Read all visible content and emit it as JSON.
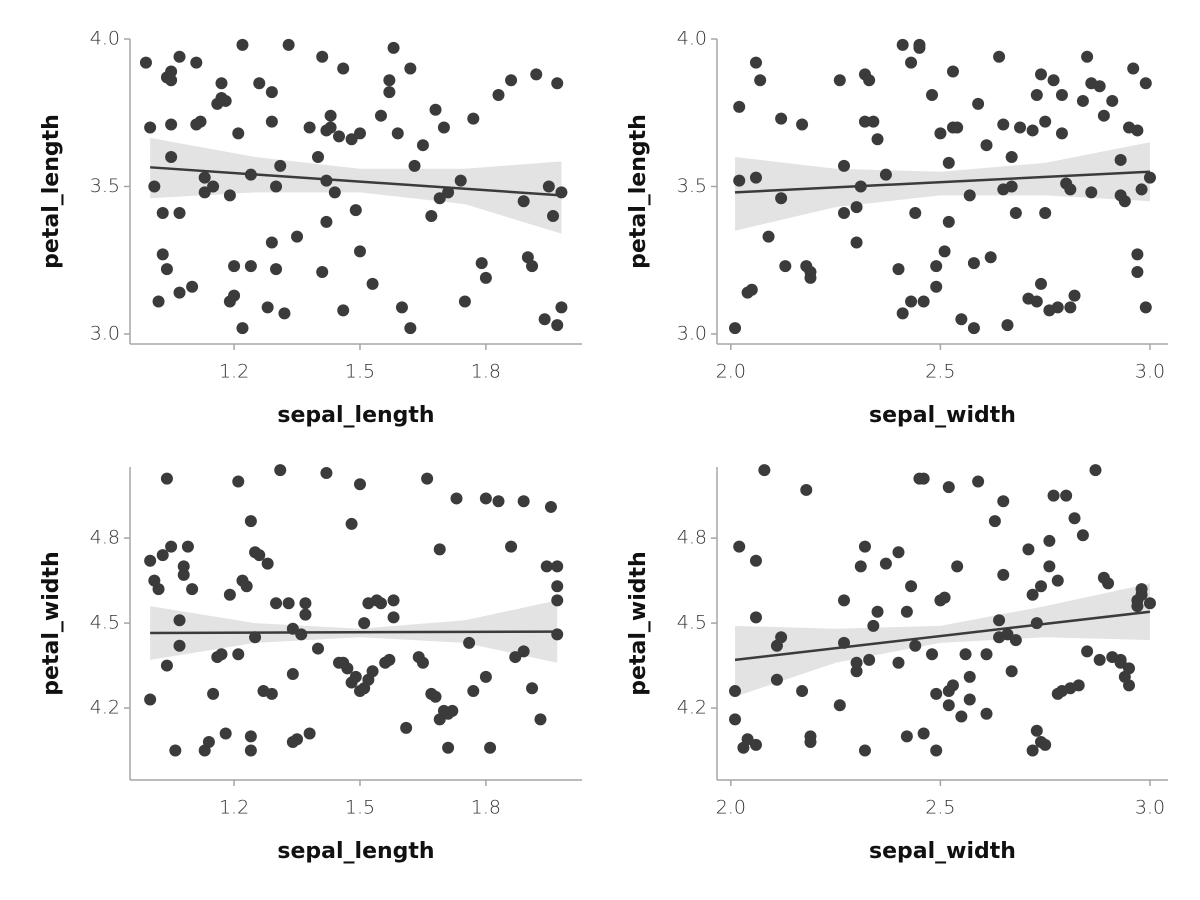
{
  "chart_data": [
    {
      "type": "scatter",
      "x_label": "sepal_length",
      "y_label": "petal_length",
      "color": "#3b3b3b",
      "band_color": "#e3e3e3",
      "xlim": [
        0.952,
        2.029
      ],
      "ylim": [
        2.966,
        4.0
      ],
      "xticks": [
        1.2,
        1.5,
        1.8
      ],
      "yticks": [
        {
          "value": 3.0,
          "label": "3.0"
        },
        3.5,
        {
          "value": 4.0,
          "label": "4.0"
        }
      ],
      "x": [
        0.99,
        1.0,
        1.01,
        1.02,
        1.03,
        1.03,
        1.04,
        1.04,
        1.05,
        1.05,
        1.05,
        1.05,
        1.07,
        1.07,
        1.07,
        1.1,
        1.11,
        1.11,
        1.12,
        1.13,
        1.13,
        1.15,
        1.16,
        1.17,
        1.17,
        1.18,
        1.19,
        1.19,
        1.2,
        1.2,
        1.21,
        1.22,
        1.22,
        1.24,
        1.24,
        1.26,
        1.28,
        1.29,
        1.29,
        1.29,
        1.3,
        1.3,
        1.31,
        1.32,
        1.33,
        1.35,
        1.38,
        1.4,
        1.41,
        1.41,
        1.42,
        1.42,
        1.42,
        1.43,
        1.43,
        1.44,
        1.45,
        1.46,
        1.46,
        1.48,
        1.49,
        1.5,
        1.5,
        1.53,
        1.55,
        1.57,
        1.57,
        1.58,
        1.59,
        1.6,
        1.62,
        1.62,
        1.63,
        1.65,
        1.67,
        1.68,
        1.69,
        1.7,
        1.71,
        1.74,
        1.75,
        1.77,
        1.79,
        1.8,
        1.83,
        1.86,
        1.89,
        1.9,
        1.91,
        1.92,
        1.94,
        1.95,
        1.96,
        1.97,
        1.97,
        1.98,
        1.98
      ],
      "values": [
        3.92,
        3.7,
        3.5,
        3.11,
        3.41,
        3.27,
        3.22,
        3.87,
        3.89,
        3.86,
        3.71,
        3.6,
        3.41,
        3.14,
        3.94,
        3.16,
        3.92,
        3.71,
        3.72,
        3.48,
        3.53,
        3.5,
        3.78,
        3.85,
        3.8,
        3.79,
        3.47,
        3.11,
        3.13,
        3.23,
        3.68,
        3.98,
        3.02,
        3.23,
        3.54,
        3.85,
        3.09,
        3.72,
        3.82,
        3.31,
        3.22,
        3.5,
        3.57,
        3.07,
        3.98,
        3.33,
        3.7,
        3.6,
        3.94,
        3.21,
        3.52,
        3.69,
        3.38,
        3.74,
        3.7,
        3.48,
        3.67,
        3.9,
        3.08,
        3.66,
        3.42,
        3.68,
        3.28,
        3.17,
        3.74,
        3.82,
        3.86,
        3.97,
        3.68,
        3.09,
        3.02,
        3.9,
        3.57,
        3.64,
        3.4,
        3.76,
        3.46,
        3.7,
        3.48,
        3.52,
        3.11,
        3.73,
        3.24,
        3.19,
        3.81,
        3.86,
        3.45,
        3.26,
        3.23,
        3.88,
        3.05,
        3.5,
        3.4,
        3.03,
        3.85,
        3.48,
        3.09
      ],
      "regression": {
        "x": [
          1.0,
          1.98
        ],
        "y": [
          3.565,
          3.47
        ]
      },
      "band": {
        "x": [
          1.0,
          1.25,
          1.5,
          1.75,
          1.98
        ],
        "lower": [
          3.46,
          3.48,
          3.48,
          3.44,
          3.34
        ],
        "upper": [
          3.665,
          3.6,
          3.56,
          3.56,
          3.585
        ]
      }
    },
    {
      "type": "scatter",
      "x_label": "sepal_width",
      "y_label": "petal_length",
      "color": "#3b3b3b",
      "band_color": "#e3e3e3",
      "xlim": [
        1.967,
        3.043
      ],
      "ylim": [
        2.966,
        4.0
      ],
      "xticks": [
        {
          "value": 2.0,
          "label": "2.0"
        },
        2.5,
        {
          "value": 3.0,
          "label": "3.0"
        }
      ],
      "yticks": [
        {
          "value": 3.0,
          "label": "3.0"
        },
        3.5,
        {
          "value": 4.0,
          "label": "4.0"
        }
      ],
      "x": [
        2.01,
        2.02,
        2.02,
        2.04,
        2.05,
        2.06,
        2.06,
        2.07,
        2.09,
        2.12,
        2.12,
        2.13,
        2.17,
        2.18,
        2.19,
        2.19,
        2.26,
        2.27,
        2.27,
        2.3,
        2.3,
        2.31,
        2.32,
        2.32,
        2.33,
        2.34,
        2.35,
        2.37,
        2.4,
        2.41,
        2.41,
        2.43,
        2.43,
        2.44,
        2.45,
        2.45,
        2.46,
        2.48,
        2.49,
        2.49,
        2.5,
        2.51,
        2.52,
        2.52,
        2.53,
        2.53,
        2.54,
        2.55,
        2.57,
        2.58,
        2.58,
        2.59,
        2.61,
        2.62,
        2.64,
        2.65,
        2.65,
        2.66,
        2.67,
        2.67,
        2.68,
        2.69,
        2.71,
        2.72,
        2.73,
        2.73,
        2.74,
        2.74,
        2.75,
        2.75,
        2.76,
        2.77,
        2.78,
        2.79,
        2.79,
        2.8,
        2.81,
        2.81,
        2.82,
        2.84,
        2.85,
        2.86,
        2.86,
        2.88,
        2.89,
        2.91,
        2.93,
        2.93,
        2.94,
        2.95,
        2.96,
        2.97,
        2.97,
        2.97,
        2.98,
        2.99,
        2.99,
        3.0
      ],
      "values": [
        3.02,
        3.52,
        3.77,
        3.14,
        3.15,
        3.53,
        3.92,
        3.86,
        3.33,
        3.73,
        3.46,
        3.23,
        3.71,
        3.23,
        3.21,
        3.19,
        3.86,
        3.41,
        3.57,
        3.43,
        3.31,
        3.5,
        3.88,
        3.72,
        3.86,
        3.72,
        3.66,
        3.54,
        3.22,
        3.07,
        3.98,
        3.92,
        3.11,
        3.41,
        3.98,
        3.97,
        3.11,
        3.81,
        3.16,
        3.23,
        3.68,
        3.28,
        3.38,
        3.58,
        3.7,
        3.89,
        3.7,
        3.05,
        3.47,
        3.02,
        3.24,
        3.78,
        3.64,
        3.26,
        3.94,
        3.71,
        3.49,
        3.03,
        3.6,
        3.5,
        3.41,
        3.7,
        3.12,
        3.69,
        3.11,
        3.81,
        3.17,
        3.88,
        3.41,
        3.72,
        3.08,
        3.86,
        3.09,
        3.81,
        3.68,
        3.51,
        3.09,
        3.49,
        3.13,
        3.79,
        3.94,
        3.85,
        3.48,
        3.84,
        3.74,
        3.79,
        3.47,
        3.59,
        3.45,
        3.7,
        3.9,
        3.69,
        3.27,
        3.21,
        3.49,
        3.09,
        3.85,
        3.53
      ],
      "regression": {
        "x": [
          2.01,
          3.0
        ],
        "y": [
          3.48,
          3.55
        ]
      },
      "band": {
        "x": [
          2.01,
          2.25,
          2.5,
          2.75,
          3.0
        ],
        "lower": [
          3.35,
          3.43,
          3.47,
          3.47,
          3.45
        ],
        "upper": [
          3.6,
          3.56,
          3.55,
          3.58,
          3.65
        ]
      }
    },
    {
      "type": "scatter",
      "x_label": "sepal_length",
      "y_label": "petal_width",
      "color": "#3b3b3b",
      "band_color": "#e3e3e3",
      "xlim": [
        0.952,
        2.029
      ],
      "ylim": [
        3.946,
        5.051
      ],
      "xticks": [
        1.2,
        1.5,
        1.8
      ],
      "yticks": [
        4.2,
        4.5,
        4.8
      ],
      "x": [
        1.0,
        1.0,
        1.01,
        1.02,
        1.03,
        1.04,
        1.04,
        1.05,
        1.06,
        1.07,
        1.07,
        1.08,
        1.08,
        1.09,
        1.1,
        1.13,
        1.14,
        1.15,
        1.16,
        1.17,
        1.18,
        1.19,
        1.21,
        1.21,
        1.22,
        1.23,
        1.24,
        1.24,
        1.24,
        1.25,
        1.25,
        1.26,
        1.27,
        1.28,
        1.29,
        1.3,
        1.31,
        1.33,
        1.34,
        1.34,
        1.34,
        1.35,
        1.36,
        1.37,
        1.37,
        1.38,
        1.4,
        1.42,
        1.45,
        1.46,
        1.47,
        1.48,
        1.48,
        1.49,
        1.5,
        1.5,
        1.51,
        1.51,
        1.52,
        1.52,
        1.53,
        1.54,
        1.55,
        1.56,
        1.57,
        1.58,
        1.58,
        1.61,
        1.64,
        1.65,
        1.66,
        1.67,
        1.68,
        1.69,
        1.7,
        1.71,
        1.71,
        1.72,
        1.69,
        1.73,
        1.76,
        1.77,
        1.8,
        1.8,
        1.81,
        1.83,
        1.86,
        1.87,
        1.89,
        1.89,
        1.91,
        1.93,
        1.945,
        1.955,
        1.97,
        1.97,
        1.97,
        1.97
      ],
      "values": [
        4.72,
        4.23,
        4.65,
        4.62,
        4.74,
        5.01,
        4.35,
        4.77,
        4.05,
        4.51,
        4.42,
        4.67,
        4.7,
        4.77,
        4.62,
        4.05,
        4.08,
        4.25,
        4.38,
        4.39,
        4.11,
        4.6,
        5.0,
        4.39,
        4.65,
        4.63,
        4.86,
        4.1,
        4.05,
        4.45,
        4.75,
        4.74,
        4.26,
        4.71,
        4.25,
        4.57,
        5.04,
        4.57,
        4.32,
        4.48,
        4.08,
        4.09,
        4.46,
        4.57,
        4.53,
        4.11,
        4.41,
        5.03,
        4.36,
        4.36,
        4.34,
        4.85,
        4.29,
        4.31,
        4.26,
        4.99,
        4.27,
        4.5,
        4.57,
        4.3,
        4.33,
        4.58,
        4.57,
        4.36,
        4.37,
        4.52,
        4.58,
        4.13,
        4.38,
        4.36,
        5.01,
        4.25,
        4.24,
        4.16,
        4.19,
        4.18,
        4.06,
        4.19,
        4.76,
        4.94,
        4.43,
        4.26,
        4.31,
        4.94,
        4.06,
        4.93,
        4.77,
        4.38,
        4.4,
        4.93,
        4.27,
        4.16,
        4.7,
        4.91,
        4.58,
        4.63,
        4.46,
        4.7
      ],
      "regression": {
        "x": [
          1.0,
          1.97
        ],
        "y": [
          4.465,
          4.47
        ]
      },
      "band": {
        "x": [
          1.0,
          1.25,
          1.5,
          1.75,
          1.97
        ],
        "lower": [
          4.37,
          4.43,
          4.45,
          4.43,
          4.36
        ],
        "upper": [
          4.56,
          4.5,
          4.48,
          4.51,
          4.58
        ]
      }
    },
    {
      "type": "scatter",
      "x_label": "sepal_width",
      "y_label": "petal_width",
      "color": "#3b3b3b",
      "band_color": "#e3e3e3",
      "xlim": [
        1.967,
        3.043
      ],
      "ylim": [
        3.946,
        5.051
      ],
      "xticks": [
        {
          "value": 2.0,
          "label": "2.0"
        },
        2.5,
        {
          "value": 3.0,
          "label": "3.0"
        }
      ],
      "yticks": [
        4.2,
        4.5,
        4.8
      ],
      "x": [
        2.01,
        2.01,
        2.02,
        2.03,
        2.04,
        2.06,
        2.06,
        2.06,
        2.08,
        2.11,
        2.11,
        2.12,
        2.17,
        2.18,
        2.19,
        2.19,
        2.26,
        2.27,
        2.27,
        2.3,
        2.3,
        2.31,
        2.32,
        2.32,
        2.33,
        2.34,
        2.35,
        2.37,
        2.4,
        2.4,
        2.42,
        2.42,
        2.43,
        2.44,
        2.45,
        2.46,
        2.46,
        2.48,
        2.49,
        2.49,
        2.5,
        2.51,
        2.52,
        2.52,
        2.52,
        2.53,
        2.54,
        2.55,
        2.56,
        2.57,
        2.57,
        2.59,
        2.61,
        2.61,
        2.63,
        2.64,
        2.64,
        2.65,
        2.65,
        2.66,
        2.67,
        2.68,
        2.71,
        2.72,
        2.72,
        2.73,
        2.73,
        2.74,
        2.74,
        2.75,
        2.76,
        2.76,
        2.77,
        2.78,
        2.78,
        2.79,
        2.8,
        2.81,
        2.82,
        2.83,
        2.84,
        2.85,
        2.87,
        2.88,
        2.89,
        2.9,
        2.91,
        2.93,
        2.93,
        2.94,
        2.95,
        2.95,
        2.97,
        2.97,
        2.98,
        2.98,
        3.0
      ],
      "values": [
        4.16,
        4.26,
        4.77,
        4.06,
        4.09,
        4.72,
        4.52,
        4.07,
        5.04,
        4.42,
        4.3,
        4.45,
        4.26,
        4.97,
        4.1,
        4.08,
        4.21,
        4.43,
        4.58,
        4.33,
        4.36,
        4.7,
        4.77,
        4.05,
        4.37,
        4.49,
        4.54,
        4.71,
        4.36,
        4.75,
        4.1,
        4.54,
        4.63,
        4.42,
        5.01,
        5.01,
        4.11,
        4.39,
        4.05,
        4.25,
        4.58,
        4.59,
        4.21,
        4.26,
        4.98,
        4.28,
        4.7,
        4.17,
        4.39,
        4.23,
        4.31,
        5.0,
        4.18,
        4.39,
        4.86,
        4.51,
        4.45,
        4.93,
        4.67,
        4.46,
        4.33,
        4.44,
        4.76,
        4.05,
        4.6,
        4.12,
        4.5,
        4.08,
        4.63,
        4.07,
        4.7,
        4.79,
        4.95,
        4.65,
        4.25,
        4.26,
        4.95,
        4.27,
        4.87,
        4.28,
        4.81,
        4.4,
        5.04,
        4.37,
        4.66,
        4.64,
        4.38,
        4.37,
        4.36,
        4.31,
        4.28,
        4.34,
        4.56,
        4.58,
        4.6,
        4.62,
        4.57
      ],
      "regression": {
        "x": [
          2.01,
          3.0
        ],
        "y": [
          4.37,
          4.54
        ]
      },
      "band": {
        "x": [
          2.01,
          2.25,
          2.5,
          2.75,
          3.0
        ],
        "lower": [
          4.24,
          4.36,
          4.43,
          4.45,
          4.44
        ],
        "upper": [
          4.49,
          4.48,
          4.49,
          4.56,
          4.64
        ]
      }
    }
  ]
}
